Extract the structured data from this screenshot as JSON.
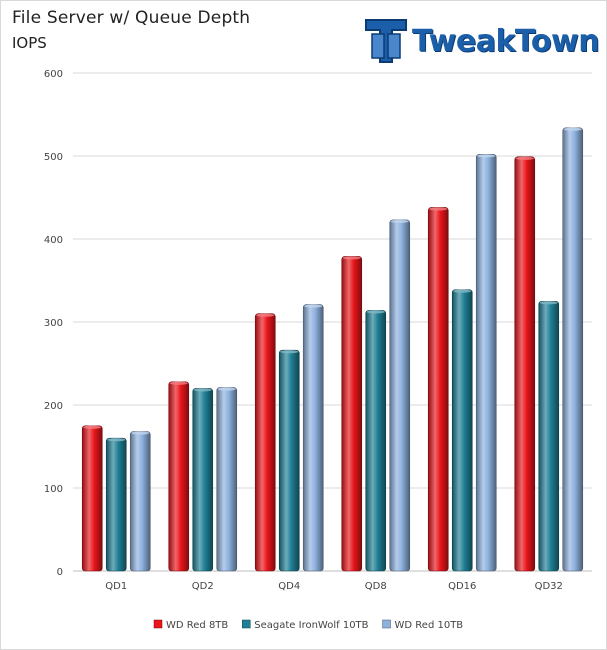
{
  "header": {
    "title": "File Server w/ Queue Depth",
    "subtitle": "IOPS",
    "logo_text": "TweakTown"
  },
  "colors": {
    "brand": "#1b5faa",
    "grid": "#d9d9d9"
  },
  "chart_data": {
    "type": "bar",
    "title": "File Server w/ Queue Depth",
    "ylabel": "IOPS",
    "categories": [
      "QD1",
      "QD2",
      "QD4",
      "QD8",
      "QD16",
      "QD32"
    ],
    "ylim": [
      0,
      600
    ],
    "yticks": [
      0,
      100,
      200,
      300,
      400,
      500,
      600
    ],
    "grid": true,
    "legend_position": "bottom",
    "series": [
      {
        "name": "WD Red 8TB",
        "color": "#e8151b",
        "values": [
          175,
          228,
          310,
          379,
          438,
          499
        ]
      },
      {
        "name": "Seagate IronWolf 10TB",
        "color": "#1f7f95",
        "values": [
          160,
          220,
          266,
          314,
          339,
          325
        ]
      },
      {
        "name": "WD Red 10TB",
        "color": "#8db1de",
        "values": [
          168,
          221,
          321,
          423,
          502,
          534
        ]
      }
    ]
  }
}
